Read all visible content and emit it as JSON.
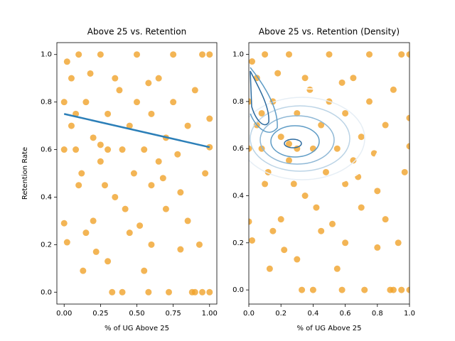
{
  "chart_data": [
    {
      "type": "scatter",
      "title": "Above 25 vs. Retention",
      "xlabel": "% of UG Above 25",
      "ylabel": "Retention Rate",
      "color": "#f0a22a",
      "x": [
        0,
        0.02,
        0.13,
        0.22,
        0.3,
        0.33,
        0.4,
        0.58,
        0.72,
        0.88,
        0.9,
        0.95,
        1.0,
        0.55,
        0.6,
        0.8,
        0.93,
        0.85,
        0.97,
        1.0,
        1.0,
        1.0,
        0.95,
        0.75,
        0.5,
        0.25,
        0.1,
        0.45,
        0.7,
        0.2,
        0.1,
        0.35,
        0.6,
        0.8,
        0.9,
        0.85,
        0.65,
        0.05,
        0.05,
        0.08,
        0.15,
        0.2,
        0.25,
        0.3,
        0.35,
        0.4,
        0.45,
        0.5,
        0.55,
        0.6,
        0.65,
        0.7,
        0.75,
        0.02,
        0.0,
        0.0,
        0.12,
        0.28,
        0.48,
        0.68,
        0.78,
        0.18,
        0.38,
        0.58,
        0.42,
        0.15,
        0.52,
        0.25,
        0.3,
        0.08
      ],
      "values": [
        0.29,
        0.21,
        0.09,
        0.17,
        0.13,
        0.0,
        0.0,
        0.0,
        0.0,
        0.0,
        0.0,
        0.0,
        0.0,
        0.09,
        0.2,
        0.18,
        0.2,
        0.3,
        0.5,
        0.61,
        0.73,
        1.0,
        1.0,
        1.0,
        1.0,
        1.0,
        1.0,
        0.25,
        0.35,
        0.3,
        0.45,
        0.4,
        0.45,
        0.42,
        0.85,
        0.7,
        0.9,
        0.9,
        0.7,
        0.6,
        0.8,
        0.65,
        0.55,
        0.75,
        0.9,
        0.6,
        0.7,
        0.8,
        0.6,
        0.75,
        0.55,
        0.65,
        0.8,
        0.97,
        0.8,
        0.6,
        0.5,
        0.45,
        0.5,
        0.48,
        0.58,
        0.92,
        0.85,
        0.88,
        0.35,
        0.25,
        0.28,
        0.62,
        0.6,
        0.75
      ],
      "regression": {
        "color": "#2c7fb8",
        "x": [
          0,
          1
        ],
        "values": [
          0.75,
          0.61
        ]
      },
      "xlim": [
        -0.05,
        1.05
      ],
      "ylim": [
        -0.05,
        1.05
      ],
      "xticks": [
        {
          "value": 0,
          "label": "0.00"
        },
        {
          "value": 0.25,
          "label": "0.25"
        },
        {
          "value": 0.5,
          "label": "0.50"
        },
        {
          "value": 0.75,
          "label": "0.75"
        },
        {
          "value": 1,
          "label": "1.00"
        }
      ],
      "yticks": [
        {
          "value": 0,
          "label": "0.0"
        },
        0.2,
        0.4,
        0.6,
        0.8,
        {
          "value": 1,
          "label": "1.0"
        }
      ]
    },
    {
      "type": "scatter-density",
      "title": "Above 25 vs. Retention (Density)",
      "xlabel": "% of UG Above 25",
      "color": "#f0a22a",
      "x": [
        0,
        0.02,
        0.13,
        0.22,
        0.3,
        0.33,
        0.4,
        0.58,
        0.72,
        0.88,
        0.9,
        0.95,
        1.0,
        0.55,
        0.6,
        0.8,
        0.93,
        0.85,
        0.97,
        1.0,
        1.0,
        1.0,
        0.95,
        0.75,
        0.5,
        0.25,
        0.1,
        0.45,
        0.7,
        0.2,
        0.1,
        0.35,
        0.6,
        0.8,
        0.9,
        0.85,
        0.65,
        0.05,
        0.05,
        0.08,
        0.15,
        0.2,
        0.25,
        0.3,
        0.35,
        0.4,
        0.45,
        0.5,
        0.55,
        0.6,
        0.65,
        0.7,
        0.75,
        0.02,
        0.0,
        0.0,
        0.12,
        0.28,
        0.48,
        0.68,
        0.78,
        0.18,
        0.38,
        0.58,
        0.42,
        0.15,
        0.52,
        0.25,
        0.3,
        0.08
      ],
      "values": [
        0.29,
        0.21,
        0.09,
        0.17,
        0.13,
        0.0,
        0.0,
        0.0,
        0.0,
        0.0,
        0.0,
        0.0,
        0.0,
        0.09,
        0.2,
        0.18,
        0.2,
        0.3,
        0.5,
        0.61,
        0.73,
        1.0,
        1.0,
        1.0,
        1.0,
        1.0,
        1.0,
        0.25,
        0.35,
        0.3,
        0.45,
        0.4,
        0.45,
        0.42,
        0.85,
        0.7,
        0.9,
        0.9,
        0.7,
        0.6,
        0.8,
        0.65,
        0.55,
        0.75,
        0.9,
        0.6,
        0.7,
        0.8,
        0.6,
        0.75,
        0.55,
        0.65,
        0.8,
        0.97,
        0.8,
        0.6,
        0.5,
        0.45,
        0.5,
        0.48,
        0.58,
        0.92,
        0.85,
        0.88,
        0.35,
        0.25,
        0.28,
        0.62,
        0.6,
        0.75
      ],
      "xlim": [
        0,
        1
      ],
      "ylim": [
        -0.06,
        1.05
      ],
      "xticks": [
        {
          "value": 0,
          "label": "0.0"
        },
        0.2,
        0.4,
        0.6,
        0.8,
        {
          "value": 1,
          "label": "1.0"
        }
      ],
      "yticks": [
        {
          "value": 0,
          "label": "0.0"
        },
        0.2,
        0.4,
        0.6,
        0.8,
        {
          "value": 1,
          "label": "1.0"
        }
      ]
    }
  ]
}
